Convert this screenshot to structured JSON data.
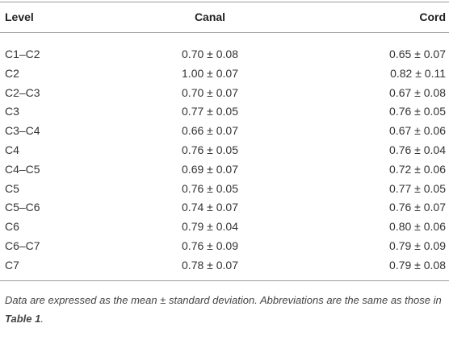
{
  "table": {
    "header": [
      "Level",
      "Canal",
      "Cord"
    ],
    "rows": [
      [
        "C1–C2",
        "0.70 ± 0.08",
        "0.65 ± 0.07"
      ],
      [
        "C2",
        "1.00 ± 0.07",
        "0.82 ± 0.11"
      ],
      [
        "C2–C3",
        "0.70 ± 0.07",
        "0.67 ± 0.08"
      ],
      [
        "C3",
        "0.77 ± 0.05",
        "0.76 ± 0.05"
      ],
      [
        "C3–C4",
        "0.66 ± 0.07",
        "0.67 ± 0.06"
      ],
      [
        "C4",
        "0.76 ± 0.05",
        "0.76 ± 0.04"
      ],
      [
        "C4–C5",
        "0.69 ± 0.07",
        "0.72 ± 0.06"
      ],
      [
        "C5",
        "0.76 ± 0.05",
        "0.77 ± 0.05"
      ],
      [
        "C5–C6",
        "0.74 ± 0.07",
        "0.76 ± 0.07"
      ],
      [
        "C6",
        "0.79 ± 0.04",
        "0.80 ± 0.06"
      ],
      [
        "C6–C7",
        "0.76 ± 0.09",
        "0.79 ± 0.09"
      ],
      [
        "C7",
        "0.78 ± 0.07",
        "0.79 ± 0.08"
      ]
    ],
    "footnote": {
      "text": "Data are expressed as the mean ± standard deviation. Abbreviations are the same as those in ",
      "ref": "Table 1",
      "end": "."
    }
  }
}
